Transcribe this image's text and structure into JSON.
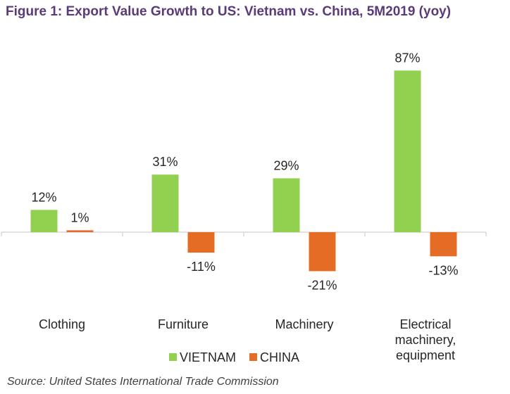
{
  "title": "Figure 1: Export Value Growth to US: Vietnam vs. China, 5M2019 (yoy)",
  "source": "Source: United States International Trade Commission",
  "colors": {
    "title": "#5b3a7a",
    "axis": "#d9d9d9",
    "text": "#262626"
  },
  "chart_data": {
    "type": "bar",
    "title": "Figure 1: Export Value Growth to US: Vietnam vs. China, 5M2019 (yoy)",
    "categories": [
      [
        "Clothing"
      ],
      [
        "Furniture"
      ],
      [
        "Machinery"
      ],
      [
        "Electrical",
        "machinery,",
        "equipment"
      ]
    ],
    "series": [
      {
        "name": "VIETNAM",
        "color": "#92d050",
        "values": [
          12,
          31,
          29,
          87
        ],
        "labels": [
          "12%",
          "31%",
          "29%",
          "87%"
        ]
      },
      {
        "name": "CHINA",
        "color": "#e46c24",
        "values": [
          1,
          -11,
          -21,
          -13
        ],
        "labels": [
          "1%",
          "-11%",
          "-21%",
          "-13%"
        ]
      }
    ],
    "unit": "%",
    "ylim": [
      -30,
      100
    ],
    "grid": false,
    "legend": "bottom-center"
  }
}
